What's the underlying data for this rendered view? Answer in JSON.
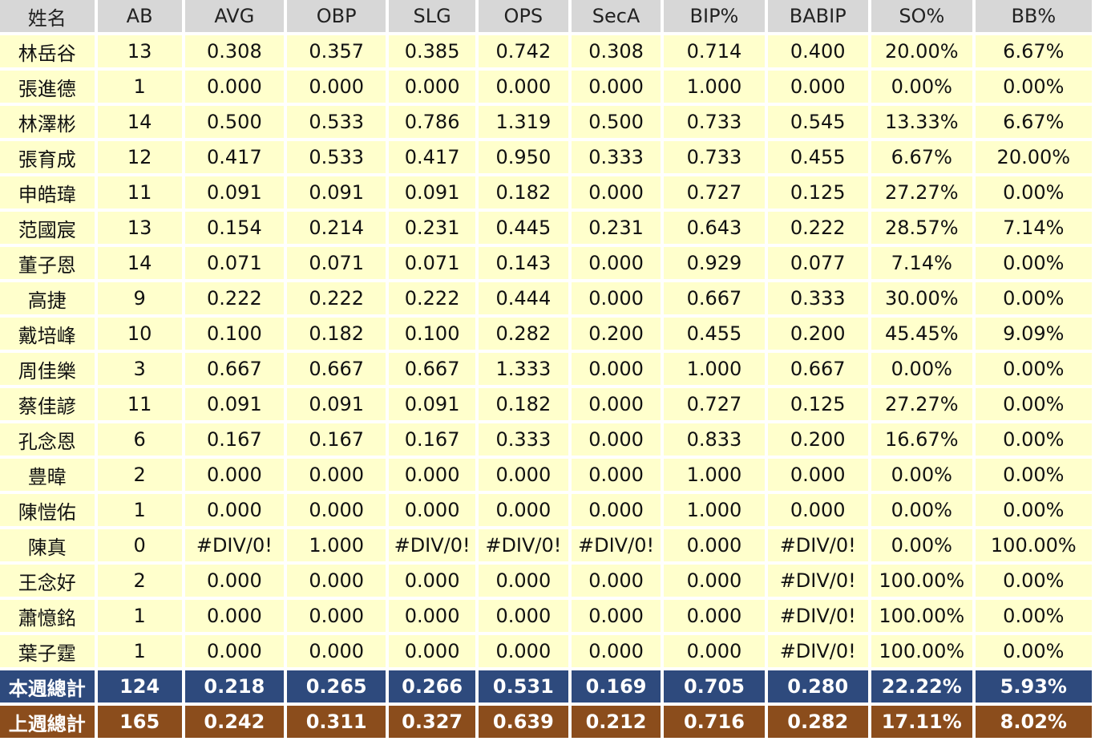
{
  "colors": {
    "header_bg": "#d7d7d7",
    "row_bg": "#ffffcc",
    "this_week_total_bg": "#2e4a7d",
    "last_week_total_bg": "#8b4d1c"
  },
  "headers": [
    "姓名",
    "AB",
    "AVG",
    "OBP",
    "SLG",
    "OPS",
    "SecA",
    "BIP%",
    "BABIP",
    "SO%",
    "BB%"
  ],
  "rows": [
    [
      "林岳谷",
      "13",
      "0.308",
      "0.357",
      "0.385",
      "0.742",
      "0.308",
      "0.714",
      "0.400",
      "20.00%",
      "6.67%"
    ],
    [
      "張進德",
      "1",
      "0.000",
      "0.000",
      "0.000",
      "0.000",
      "0.000",
      "1.000",
      "0.000",
      "0.00%",
      "0.00%"
    ],
    [
      "林澤彬",
      "14",
      "0.500",
      "0.533",
      "0.786",
      "1.319",
      "0.500",
      "0.733",
      "0.545",
      "13.33%",
      "6.67%"
    ],
    [
      "張育成",
      "12",
      "0.417",
      "0.533",
      "0.417",
      "0.950",
      "0.333",
      "0.733",
      "0.455",
      "6.67%",
      "20.00%"
    ],
    [
      "申皓瑋",
      "11",
      "0.091",
      "0.091",
      "0.091",
      "0.182",
      "0.000",
      "0.727",
      "0.125",
      "27.27%",
      "0.00%"
    ],
    [
      "范國宸",
      "13",
      "0.154",
      "0.214",
      "0.231",
      "0.445",
      "0.231",
      "0.643",
      "0.222",
      "28.57%",
      "7.14%"
    ],
    [
      "董子恩",
      "14",
      "0.071",
      "0.071",
      "0.071",
      "0.143",
      "0.000",
      "0.929",
      "0.077",
      "7.14%",
      "0.00%"
    ],
    [
      "高捷",
      "9",
      "0.222",
      "0.222",
      "0.222",
      "0.444",
      "0.000",
      "0.667",
      "0.333",
      "30.00%",
      "0.00%"
    ],
    [
      "戴培峰",
      "10",
      "0.100",
      "0.182",
      "0.100",
      "0.282",
      "0.200",
      "0.455",
      "0.200",
      "45.45%",
      "9.09%"
    ],
    [
      "周佳樂",
      "3",
      "0.667",
      "0.667",
      "0.667",
      "1.333",
      "0.000",
      "1.000",
      "0.667",
      "0.00%",
      "0.00%"
    ],
    [
      "蔡佳諺",
      "11",
      "0.091",
      "0.091",
      "0.091",
      "0.182",
      "0.000",
      "0.727",
      "0.125",
      "27.27%",
      "0.00%"
    ],
    [
      "孔念恩",
      "6",
      "0.167",
      "0.167",
      "0.167",
      "0.333",
      "0.000",
      "0.833",
      "0.200",
      "16.67%",
      "0.00%"
    ],
    [
      "豊暐",
      "2",
      "0.000",
      "0.000",
      "0.000",
      "0.000",
      "0.000",
      "1.000",
      "0.000",
      "0.00%",
      "0.00%"
    ],
    [
      "陳愷佑",
      "1",
      "0.000",
      "0.000",
      "0.000",
      "0.000",
      "0.000",
      "1.000",
      "0.000",
      "0.00%",
      "0.00%"
    ],
    [
      "陳真",
      "0",
      "#DIV/0!",
      "1.000",
      "#DIV/0!",
      "#DIV/0!",
      "#DIV/0!",
      "0.000",
      "#DIV/0!",
      "0.00%",
      "100.00%"
    ],
    [
      "王念好",
      "2",
      "0.000",
      "0.000",
      "0.000",
      "0.000",
      "0.000",
      "0.000",
      "#DIV/0!",
      "100.00%",
      "0.00%"
    ],
    [
      "蕭憶銘",
      "1",
      "0.000",
      "0.000",
      "0.000",
      "0.000",
      "0.000",
      "0.000",
      "#DIV/0!",
      "100.00%",
      "0.00%"
    ],
    [
      "葉子霆",
      "1",
      "0.000",
      "0.000",
      "0.000",
      "0.000",
      "0.000",
      "0.000",
      "#DIV/0!",
      "100.00%",
      "0.00%"
    ]
  ],
  "totals": {
    "this_week": [
      "本週總計",
      "124",
      "0.218",
      "0.265",
      "0.266",
      "0.531",
      "0.169",
      "0.705",
      "0.280",
      "22.22%",
      "5.93%"
    ],
    "last_week": [
      "上週總計",
      "165",
      "0.242",
      "0.311",
      "0.327",
      "0.639",
      "0.212",
      "0.716",
      "0.282",
      "17.11%",
      "8.02%"
    ]
  }
}
